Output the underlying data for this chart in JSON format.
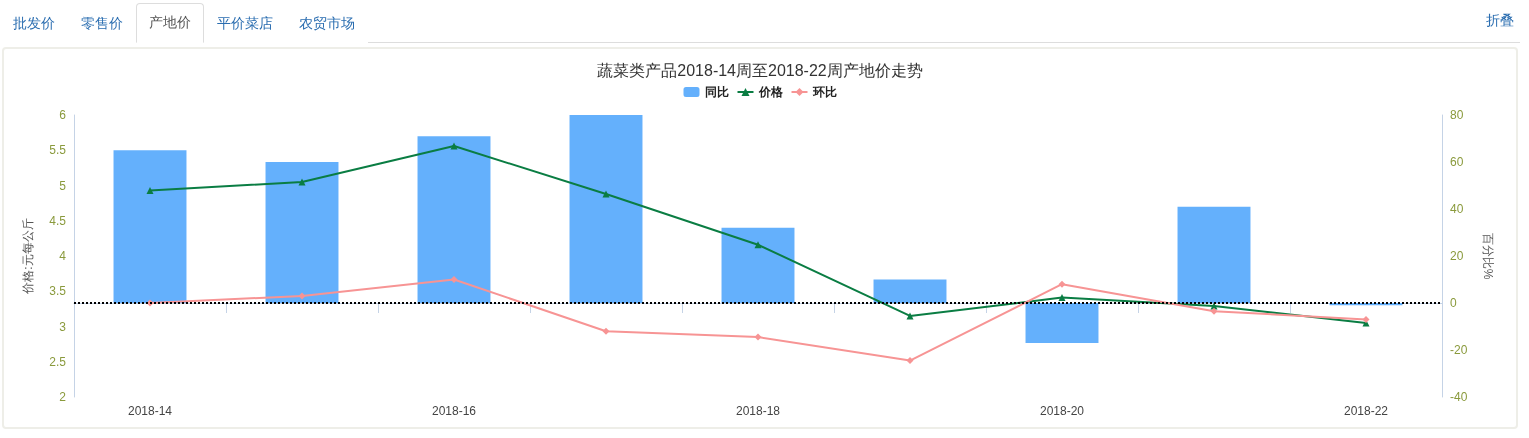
{
  "chart_data": {
    "type": "bar",
    "title": "蔬菜类产品2018-14周至2018-22周产地价走势",
    "ylabel": "价格:元每公斤",
    "y2label": "百分比%",
    "annotations": [
      "批发价",
      "零售价",
      "产地价",
      "平价菜店",
      "农贸市场",
      "折叠"
    ],
    "categories": [
      "2018-14",
      null,
      "2018-16",
      null,
      "2018-18",
      null,
      "2018-20",
      null,
      "2018-22"
    ],
    "series": [
      {
        "name": "同比",
        "axis": "y2",
        "color": "#64b0fc",
        "values": [
          65,
          60,
          71,
          80,
          32,
          10,
          -17,
          41,
          -1
        ]
      },
      {
        "name": "价格",
        "type": "line",
        "axis": "y",
        "color": "#0a7d43",
        "marker": "triangle",
        "values": [
          4.93,
          5.05,
          5.56,
          4.88,
          4.16,
          3.15,
          3.41,
          3.29,
          3.05
        ]
      },
      {
        "name": "环比",
        "type": "line",
        "axis": "y2",
        "color": "#f79494",
        "marker": "diamond",
        "values": [
          0,
          3,
          10,
          -12,
          -14.5,
          -24.5,
          8,
          -3.5,
          -7
        ]
      }
    ],
    "ylim": [
      2,
      6
    ],
    "yticks": [
      2,
      2.5,
      3,
      3.5,
      4,
      4.5,
      5,
      5.5,
      6
    ],
    "y2lim": [
      -40,
      80
    ],
    "y2ticks": [
      -40,
      -20,
      0,
      20,
      40,
      60,
      80
    ],
    "ref_lines": [
      {
        "axis": "y2",
        "value": 0,
        "color": "#000000",
        "line_style": "dotted"
      }
    ],
    "legend": "top",
    "grid": false
  }
}
